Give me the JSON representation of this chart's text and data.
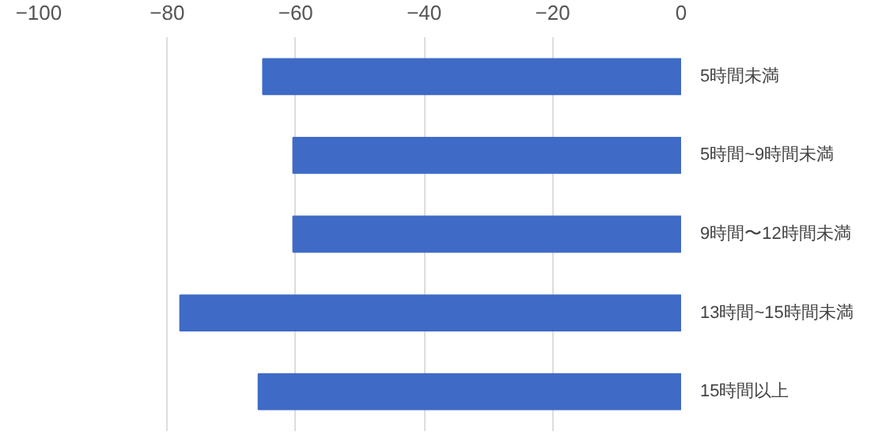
{
  "chart_data": {
    "type": "bar",
    "orientation": "horizontal",
    "categories": [
      "5時間未満",
      "5時間~9時間未満",
      "9時間〜12時間未満",
      "13時間~15時間未満",
      "15時間以上"
    ],
    "values": [
      -65.1,
      -60.4,
      -60.4,
      -78.0,
      -65.8
    ],
    "color": "#3f6bc6",
    "xlim": [
      -100,
      0
    ],
    "xticks": [
      -100,
      -80,
      -60,
      -40,
      -20,
      0
    ],
    "grid": "x"
  }
}
